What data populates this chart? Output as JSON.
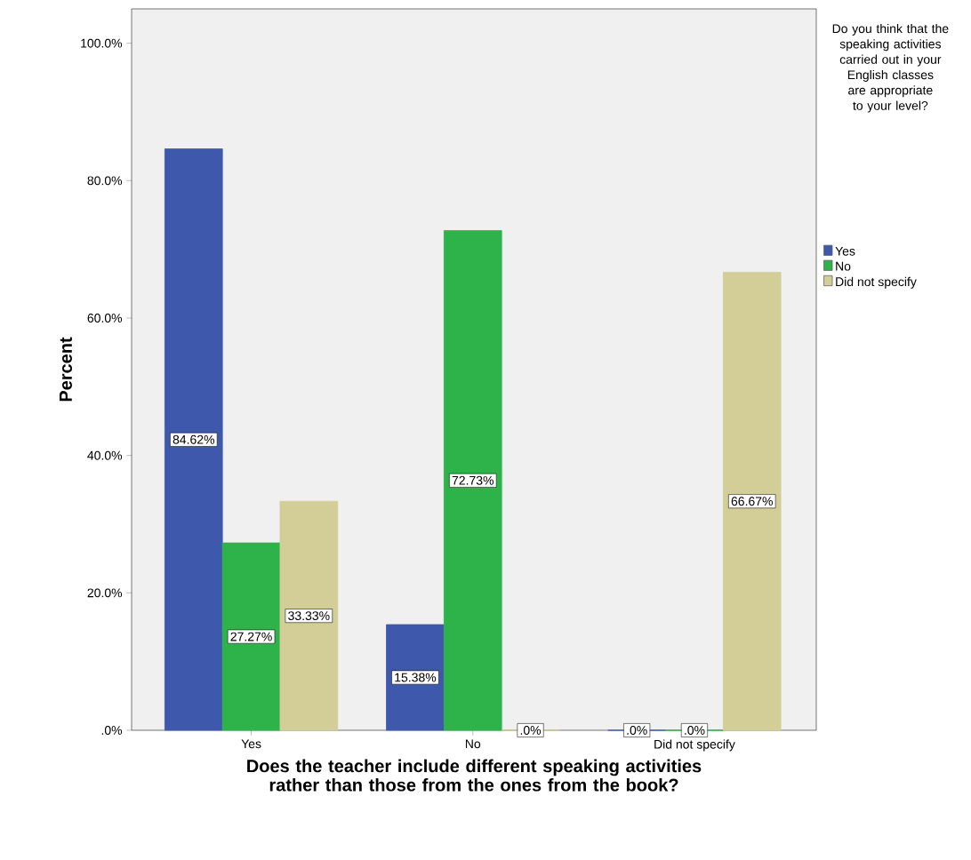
{
  "chart_data": {
    "type": "bar",
    "categories": [
      "Yes",
      "No",
      "Did not specify"
    ],
    "xlabel": "Does the teacher include different speaking activities rather than those from the ones from the book?",
    "ylabel": "Percent",
    "legend_title": "Do you think that the speaking activities carried out in your English classes are appropriate to your level?",
    "legend": "right",
    "ylim": [
      0,
      105
    ],
    "yticks": [
      {
        "value": 0,
        "label": ".0%"
      },
      {
        "value": 20,
        "label": "20.0%"
      },
      {
        "value": 40,
        "label": "40.0%"
      },
      {
        "value": 60,
        "label": "60.0%"
      },
      {
        "value": 80,
        "label": "80.0%"
      },
      {
        "value": 100,
        "label": "100.0%"
      }
    ],
    "series": [
      {
        "name": "Yes",
        "color": "#3e58ac",
        "values": [
          84.62,
          15.38,
          0
        ],
        "value_labels": [
          "84.62%",
          "15.38%",
          ".0%"
        ]
      },
      {
        "name": "No",
        "color": "#2db34a",
        "values": [
          27.27,
          72.73,
          0
        ],
        "value_labels": [
          "27.27%",
          "72.73%",
          ".0%"
        ]
      },
      {
        "name": "Did not specify",
        "color": "#d3ce97",
        "values": [
          33.33,
          0,
          66.67
        ],
        "value_labels": [
          "33.33%",
          ".0%",
          "66.67%"
        ]
      }
    ]
  }
}
